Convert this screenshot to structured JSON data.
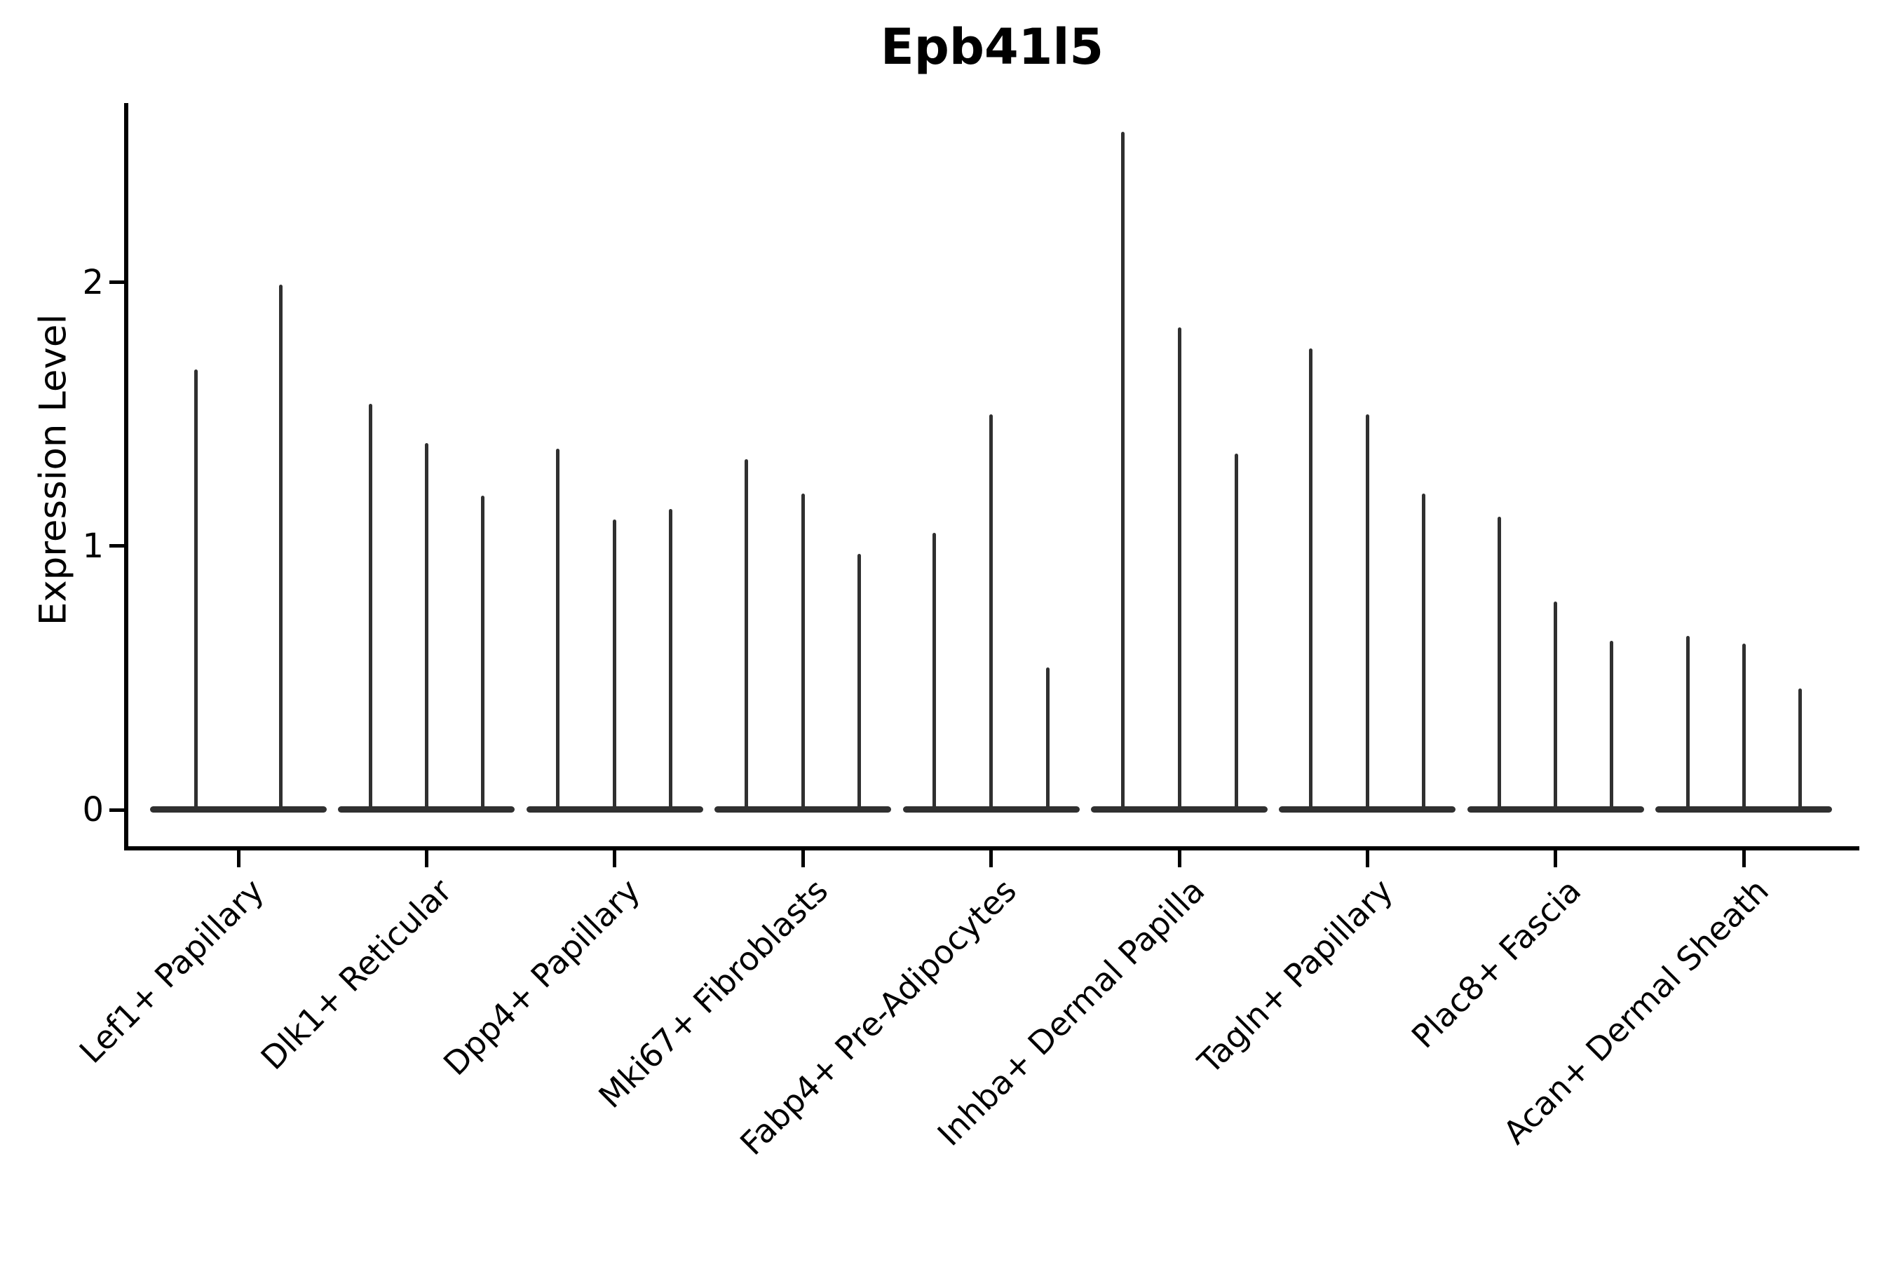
{
  "figure": {
    "title": "Epb41l5"
  },
  "chart_data": {
    "type": "violin",
    "title": "Epb41l5",
    "xlabel": "",
    "ylabel": "Expression Level",
    "yticks": [
      0,
      1,
      2
    ],
    "ylim": [
      -0.15,
      2.68
    ],
    "grid": false,
    "legend": "none",
    "ink_color": "#303030",
    "axis_color": "#000000",
    "description": "Seurat-style violin plot; each sub-violin collapses to a flat base at expression 0 with a thin spike up to its maximum expression value",
    "categories": [
      "Lef1+ Papillary",
      "Dlk1+ Reticular",
      "Dpp4+ Papillary",
      "Mki67+ Fibroblasts",
      "Fabp4+ Pre-Adipocytes",
      "Inhba+ Dermal Papilla",
      "Tagln+ Papillary",
      "Plac8+ Fascia",
      "Acan+ Dermal Sheath"
    ],
    "groups": [
      {
        "category": "Lef1+ Papillary",
        "violins": [
          {
            "offset": -61,
            "max": 1.67
          },
          {
            "offset": 60,
            "max": 1.99
          }
        ]
      },
      {
        "category": "Dlk1+ Reticular",
        "violins": [
          {
            "offset": -80,
            "max": 1.54
          },
          {
            "offset": 0,
            "max": 1.39
          },
          {
            "offset": 80,
            "max": 1.19
          }
        ]
      },
      {
        "category": "Dpp4+ Papillary",
        "violins": [
          {
            "offset": -81,
            "max": 1.37
          },
          {
            "offset": 0,
            "max": 1.1
          },
          {
            "offset": 80,
            "max": 1.14
          }
        ]
      },
      {
        "category": "Mki67+ Fibroblasts",
        "violins": [
          {
            "offset": -81,
            "max": 1.33
          },
          {
            "offset": 0,
            "max": 1.2
          },
          {
            "offset": 80,
            "max": 0.97
          }
        ]
      },
      {
        "category": "Fabp4+ Pre-Adipocytes",
        "violins": [
          {
            "offset": -81,
            "max": 1.05
          },
          {
            "offset": 0,
            "max": 1.5
          },
          {
            "offset": 81,
            "max": 0.54
          }
        ]
      },
      {
        "category": "Inhba+ Dermal Papilla",
        "violins": [
          {
            "offset": -81,
            "max": 2.57
          },
          {
            "offset": 0,
            "max": 1.83
          },
          {
            "offset": 81,
            "max": 1.35
          }
        ]
      },
      {
        "category": "Tagln+ Papillary",
        "violins": [
          {
            "offset": -81,
            "max": 1.75
          },
          {
            "offset": 0,
            "max": 1.5
          },
          {
            "offset": 80,
            "max": 1.2
          }
        ]
      },
      {
        "category": "Plac8+ Fascia",
        "violins": [
          {
            "offset": -80,
            "max": 1.11
          },
          {
            "offset": 0,
            "max": 0.79
          },
          {
            "offset": 80,
            "max": 0.64
          }
        ]
      },
      {
        "category": "Acan+ Dermal Sheath",
        "violins": [
          {
            "offset": -80,
            "max": 0.66
          },
          {
            "offset": 0,
            "max": 0.63
          },
          {
            "offset": 80,
            "max": 0.46
          }
        ]
      }
    ]
  }
}
